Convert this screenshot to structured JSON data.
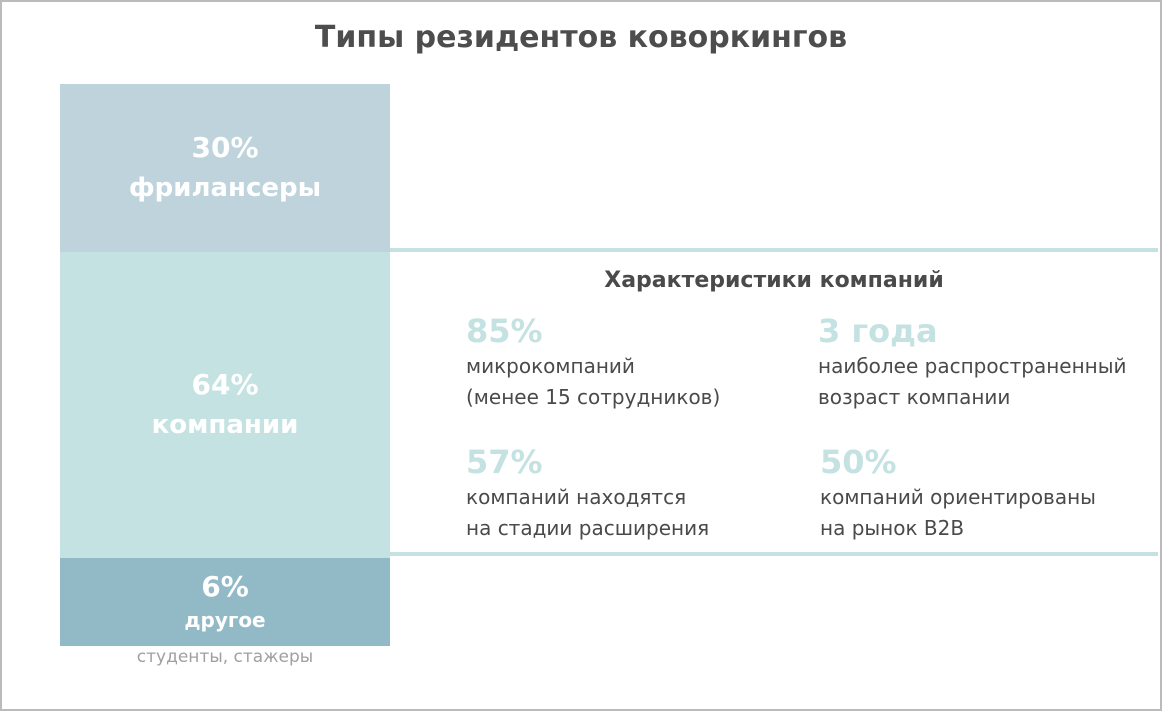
{
  "title": "Типы резидентов коворкингов",
  "segments": [
    {
      "value": "30%",
      "label": "фрилансеры"
    },
    {
      "value": "64%",
      "label": "компании"
    },
    {
      "value": "6%",
      "label": "другое",
      "note": "студенты, стажеры"
    }
  ],
  "details": {
    "title": "Характеристики компаний",
    "items": [
      {
        "value": "85%",
        "lines": [
          "микрокомпаний",
          "(менее 15 сотрудников)"
        ]
      },
      {
        "value": "3 года",
        "lines": [
          "наиболее распространенный",
          "возраст компании"
        ]
      },
      {
        "value": "57%",
        "lines": [
          "компаний находятся",
          "на стадии расширения"
        ]
      },
      {
        "value": "50%",
        "lines": [
          "компаний ориентированы",
          "на рынок B2B"
        ]
      }
    ]
  }
}
